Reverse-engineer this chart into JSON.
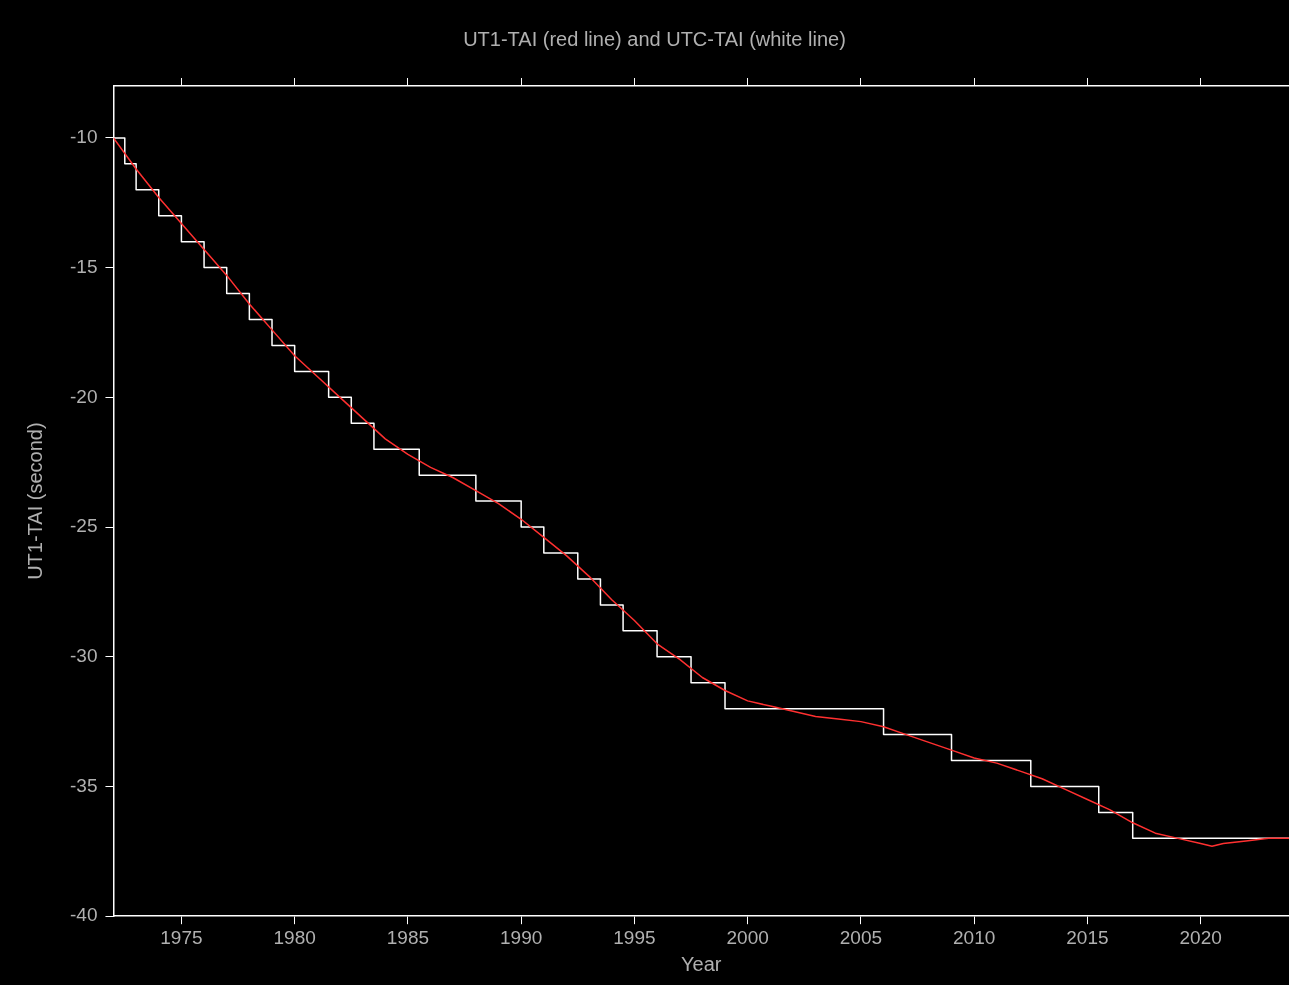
{
  "chart_data": {
    "type": "line",
    "title": "UT1-TAI (red line) and UTC-TAI (white line)",
    "xlabel": "Year",
    "ylabel": "UT1-TAI (second)",
    "xlim": [
      1972,
      2023.9
    ],
    "ylim": [
      -40,
      -8
    ],
    "xticks": [
      1975,
      1980,
      1985,
      1990,
      1995,
      2000,
      2005,
      2010,
      2015,
      2020
    ],
    "yticks": [
      -40,
      -35,
      -30,
      -25,
      -20,
      -15,
      -10
    ],
    "grid": false,
    "legend": false,
    "marker": "none",
    "line_style": "solid",
    "series": [
      {
        "type": "line",
        "color": "#ff3030",
        "x": [
          1972,
          1973,
          1974,
          1975,
          1976,
          1977,
          1978,
          1979,
          1980,
          1981,
          1982,
          1983,
          1984,
          1985,
          1986,
          1987,
          1988,
          1989,
          1990,
          1991,
          1992,
          1993,
          1994,
          1995,
          1996,
          1997,
          1998,
          1999,
          2000,
          2001,
          2002,
          2003,
          2004,
          2005,
          2006,
          2007,
          2008,
          2009,
          2010,
          2011,
          2012,
          2013,
          2014,
          2015,
          2016,
          2017,
          2018,
          2019,
          2020,
          2020.5,
          2021,
          2022,
          2023,
          2023.9
        ],
        "values": [
          -10.0,
          -11.2,
          -12.3,
          -13.3,
          -14.3,
          -15.3,
          -16.4,
          -17.4,
          -18.4,
          -19.2,
          -20.0,
          -20.8,
          -21.6,
          -22.2,
          -22.7,
          -23.1,
          -23.6,
          -24.1,
          -24.7,
          -25.4,
          -26.1,
          -26.9,
          -27.8,
          -28.6,
          -29.5,
          -30.1,
          -30.8,
          -31.3,
          -31.7,
          -31.9,
          -32.1,
          -32.3,
          -32.4,
          -32.5,
          -32.7,
          -33.0,
          -33.3,
          -33.6,
          -33.9,
          -34.1,
          -34.4,
          -34.7,
          -35.1,
          -35.5,
          -35.9,
          -36.4,
          -36.8,
          -37.0,
          -37.2,
          -37.3,
          -37.2,
          -37.1,
          -37.0,
          -37.0
        ]
      },
      {
        "type": "step",
        "color": "#ffffff",
        "x": [
          1972,
          1972.5,
          1973,
          1974,
          1975,
          1976,
          1977,
          1978,
          1979,
          1980,
          1981.5,
          1982.5,
          1983.5,
          1985.5,
          1988,
          1990,
          1991,
          1992.5,
          1993.5,
          1994.5,
          1996,
          1997.5,
          1999,
          2006,
          2009,
          2012.5,
          2015.5,
          2017,
          2023.9
        ],
        "values": [
          -10,
          -11,
          -12,
          -13,
          -14,
          -15,
          -16,
          -17,
          -18,
          -19,
          -20,
          -21,
          -22,
          -23,
          -24,
          -25,
          -26,
          -27,
          -28,
          -29,
          -30,
          -31,
          -32,
          -33,
          -34,
          -35,
          -36,
          -37,
          -37
        ]
      }
    ]
  }
}
